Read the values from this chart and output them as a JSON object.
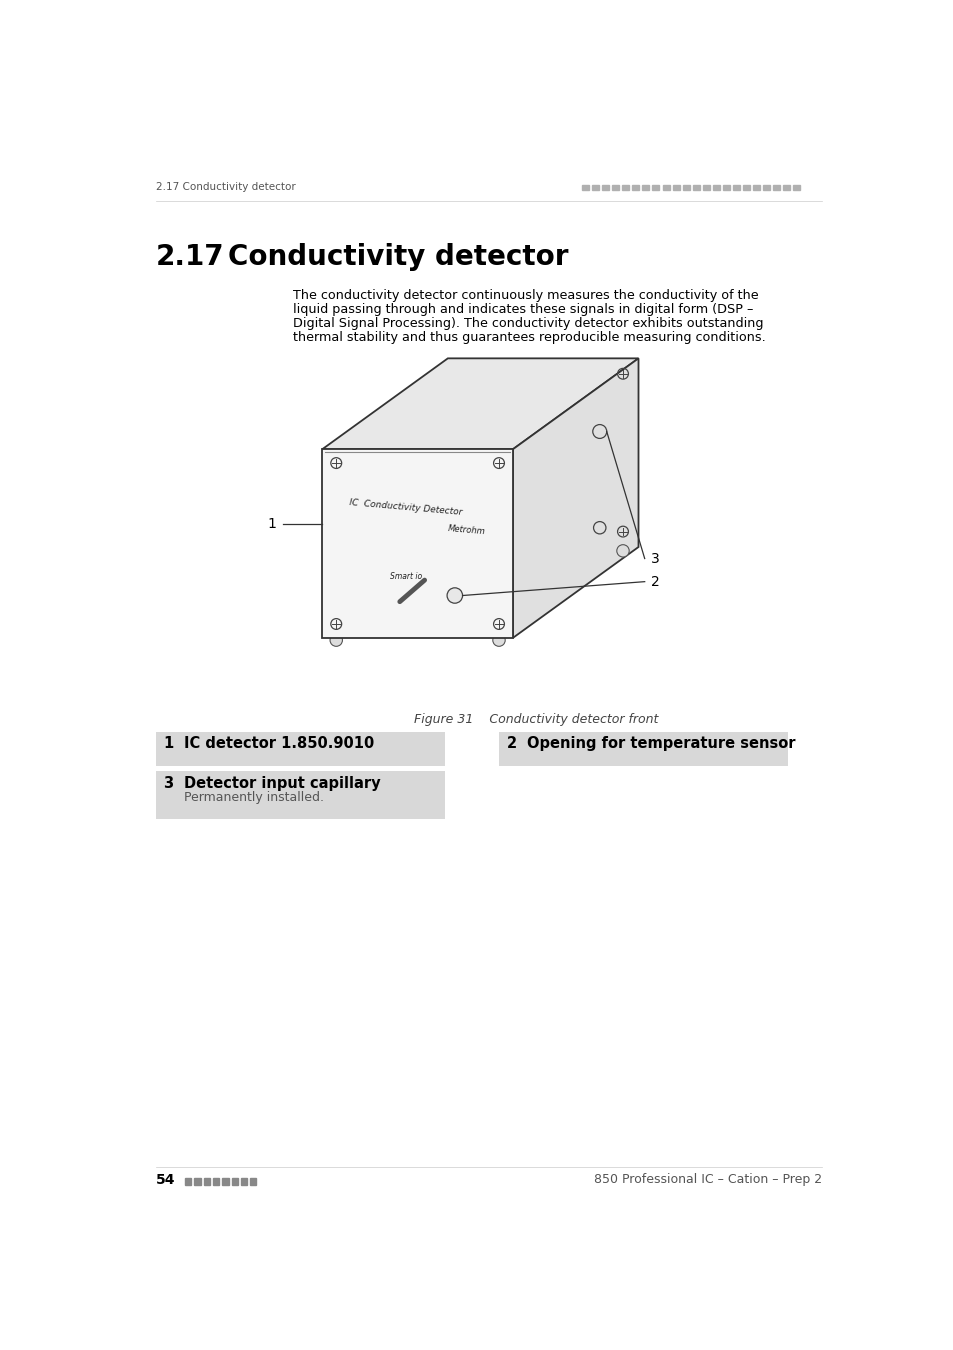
{
  "page_header_left": "2.17 Conductivity detector",
  "section_number": "2.17",
  "section_title": "Conductivity detector",
  "body_text_lines": [
    "The conductivity detector continuously measures the conductivity of the",
    "liquid passing through and indicates these signals in digital form (DSP –",
    "Digital Signal Processing). The conductivity detector exhibits outstanding",
    "thermal stability and thus guarantees reproducible measuring conditions."
  ],
  "figure_caption": "Figure 31    Conductivity detector front",
  "item1_num": "1",
  "item1_title": "IC detector 1.850.9010",
  "item2_num": "2",
  "item2_title": "Opening for temperature sensor",
  "item3_num": "3",
  "item3_title": "Detector input capillary",
  "item3_sub": "Permanently installed.",
  "footer_left_num": "54",
  "footer_right": "850 Professional IC – Cation – Prep 2",
  "bg_color": "#ffffff",
  "header_dot_color": "#b0b0b0",
  "item_bg_color": "#d8d8d8",
  "text_color": "#000000",
  "gray_text": "#555555",
  "line_color": "#333333",
  "box_face_front": "#f5f5f5",
  "box_face_top": "#e8e8e8",
  "box_face_right": "#e0e0e0"
}
